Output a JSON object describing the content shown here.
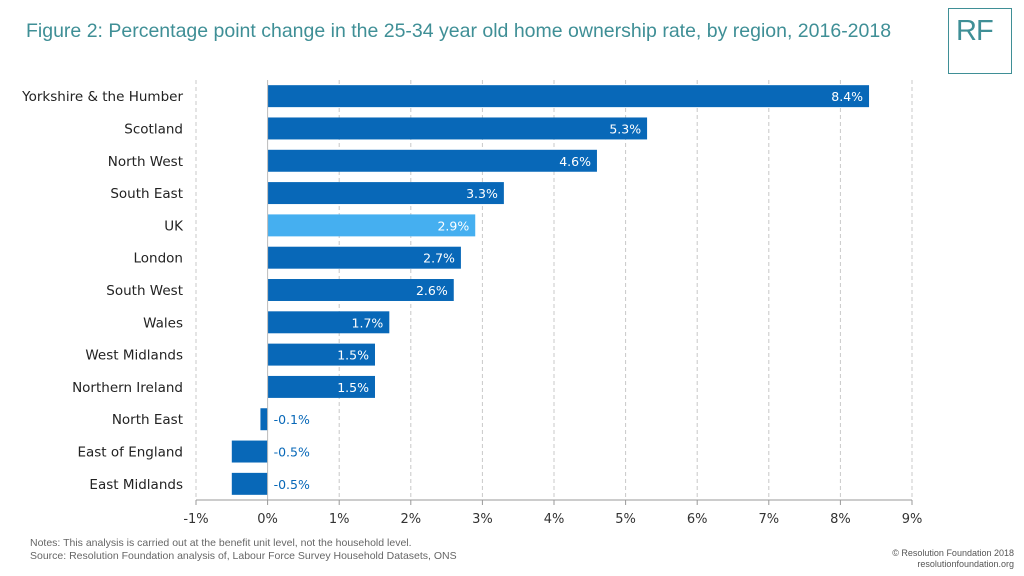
{
  "header": {
    "title": "Figure 2: Percentage point change in the 25-34 year old home ownership rate, by region, 2016-2018",
    "logo_text": "RF"
  },
  "footer": {
    "notes": "Notes: This analysis is carried out at the benefit unit level, not the household level.",
    "source": "Source: Resolution Foundation analysis of, Labour Force Survey Household Datasets, ONS",
    "copyright": "© Resolution Foundation 2018",
    "website": "resolutionfoundation.org"
  },
  "colors": {
    "bar": "#0868b8",
    "highlight": "#45aff0",
    "title": "#3f8f96",
    "grid": "#c8c8c8"
  },
  "chart_data": {
    "type": "bar",
    "orientation": "horizontal",
    "categories": [
      "Yorkshire & the Humber",
      "Scotland",
      "North West",
      "South East",
      "UK",
      "London",
      "South West",
      "Wales",
      "West Midlands",
      "Northern Ireland",
      "North East",
      "East of England",
      "East Midlands"
    ],
    "values": [
      8.4,
      5.3,
      4.6,
      3.3,
      2.9,
      2.7,
      2.6,
      1.7,
      1.5,
      1.5,
      -0.1,
      -0.5,
      -0.5
    ],
    "data_labels": [
      "8.4%",
      "5.3%",
      "4.6%",
      "3.3%",
      "2.9%",
      "2.7%",
      "2.6%",
      "1.7%",
      "1.5%",
      "1.5%",
      "-0.1%",
      "-0.5%",
      "-0.5%"
    ],
    "highlight_category": "UK",
    "xlim": [
      -1,
      9
    ],
    "xticks": [
      -1,
      0,
      1,
      2,
      3,
      4,
      5,
      6,
      7,
      8,
      9
    ],
    "xtick_labels": [
      "-1%",
      "0%",
      "1%",
      "2%",
      "3%",
      "4%",
      "5%",
      "6%",
      "7%",
      "8%",
      "9%"
    ],
    "grid": "vertical dashed",
    "legend": "none"
  }
}
